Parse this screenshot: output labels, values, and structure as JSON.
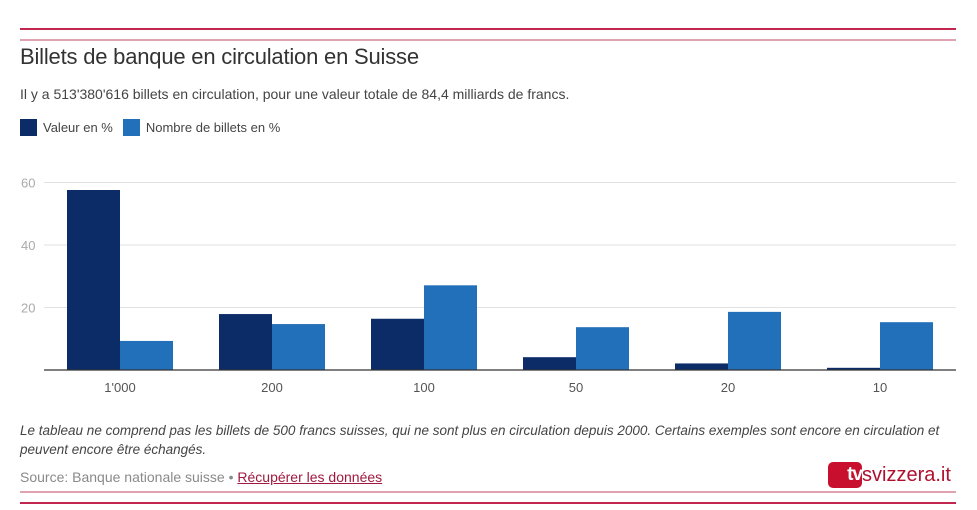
{
  "header": {
    "title": "Billets de banque en circulation en Suisse",
    "subtitle": "Il y a 513'380'616 billets en circulation, pour une valeur totale de 84,4 milliards de francs."
  },
  "legend": [
    {
      "label": "Valeur en %",
      "color": "#0b2c66"
    },
    {
      "label": "Nombre de billets en %",
      "color": "#2270b9"
    }
  ],
  "chart_data": {
    "type": "bar",
    "title": "Billets de banque en circulation en Suisse",
    "xlabel": "",
    "ylabel": "",
    "categories": [
      "1'000",
      "200",
      "100",
      "50",
      "20",
      "10"
    ],
    "series": [
      {
        "name": "Valeur en %",
        "color": "#0b2c66",
        "values": [
          57.6,
          17.9,
          16.4,
          4.1,
          2.1,
          0.7
        ]
      },
      {
        "name": "Nombre de billets en %",
        "color": "#2270b9",
        "values": [
          9.3,
          14.7,
          27.1,
          13.7,
          18.6,
          15.3
        ]
      }
    ],
    "ylim": [
      0,
      60
    ],
    "yticks": [
      20,
      40,
      60
    ],
    "ytick_labels": [
      "20",
      "40",
      "60"
    ],
    "grid": true,
    "legend_position": "top-left"
  },
  "footer": {
    "note": "Le tableau ne comprend pas les billets de 500 francs suisses, qui ne sont plus en circulation depuis 2000. Certains exemples sont encore en circulation et peuvent encore être échangés.",
    "source_label": "Source: Banque nationale suisse",
    "separator": "•",
    "download_link": "Récupérer les données",
    "logo_box": "tv",
    "logo_text": "svizzera.it"
  }
}
